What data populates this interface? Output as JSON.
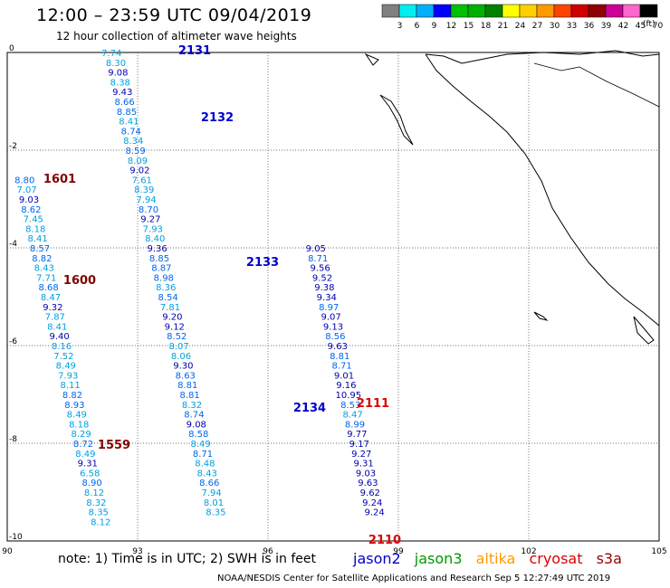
{
  "header": {
    "title": "12:00 – 23:59 UTC 09/04/2019",
    "subtitle": "12 hour collection of altimeter wave heights",
    "unit": "(ft)"
  },
  "color_scale": {
    "labels": [
      "3",
      "6",
      "9",
      "12",
      "15",
      "18",
      "21",
      "24",
      "27",
      "30",
      "33",
      "36",
      "39",
      "42",
      "45",
      "70"
    ],
    "colors": [
      "#808080",
      "#00eeee",
      "#00b0ff",
      "#0000ff",
      "#00c000",
      "#00b000",
      "#008000",
      "#ffff00",
      "#ffd000",
      "#ff9900",
      "#ff4400",
      "#d00000",
      "#900000",
      "#cc0099",
      "#ff66cc",
      "#000000"
    ]
  },
  "chart_data": {
    "type": "scatter",
    "xlim": [
      90,
      105
    ],
    "ylim": [
      -10,
      0
    ],
    "x_ticks": [
      "90",
      "93",
      "96",
      "99",
      "102",
      "105"
    ],
    "y_ticks": [
      "0",
      "-2",
      "-4",
      "-6",
      "-8",
      "-10"
    ],
    "grid": true,
    "tracks": [
      {
        "pass": "2131",
        "satellite": "jason2",
        "x": [
          92.4,
          92.5,
          92.55,
          92.6,
          92.65,
          92.7,
          92.75,
          92.8,
          92.85,
          92.9,
          92.95,
          93.0,
          93.05,
          93.1,
          93.15,
          93.2,
          93.25,
          93.3,
          93.35,
          93.4,
          93.45,
          93.5,
          93.55,
          93.6,
          93.65,
          93.7,
          93.75,
          93.8,
          93.85,
          93.9,
          93.95,
          94.0,
          94.05,
          94.1,
          94.15,
          94.2,
          94.25,
          94.3,
          94.35,
          94.4,
          94.45,
          94.5,
          94.55,
          94.6,
          94.65,
          94.7,
          94.75,
          94.8
        ],
        "y": [
          0,
          -0.2,
          -0.4,
          -0.6,
          -0.8,
          -1.0,
          -1.2,
          -1.4,
          -1.6,
          -1.8,
          -2.0,
          -2.2,
          -2.4,
          -2.6,
          -2.8,
          -3.0,
          -3.2,
          -3.4,
          -3.6,
          -3.8,
          -4.0,
          -4.2,
          -4.4,
          -4.6,
          -4.8,
          -5.0,
          -5.2,
          -5.4,
          -5.6,
          -5.8,
          -6.0,
          -6.2,
          -6.4,
          -6.6,
          -6.8,
          -7.0,
          -7.2,
          -7.4,
          -7.6,
          -7.8,
          -8.0,
          -8.2,
          -8.4,
          -8.6,
          -8.8,
          -9.0,
          -9.2,
          -9.4
        ],
        "values": [
          7.74,
          8.3,
          9.08,
          8.38,
          9.43,
          8.66,
          8.85,
          8.41,
          8.74,
          8.34,
          8.59,
          8.09,
          9.02,
          7.61,
          8.39,
          7.94,
          8.7,
          9.27,
          7.93,
          8.4,
          9.36,
          8.85,
          8.87,
          8.98,
          8.36,
          8.54,
          7.81,
          9.2,
          9.12,
          8.52,
          8.07,
          8.06,
          9.3,
          8.63,
          8.81,
          8.81,
          8.32,
          8.74,
          9.08,
          8.58,
          8.49,
          8.71,
          8.48,
          8.43,
          8.66,
          7.94,
          8.01,
          8.35
        ]
      },
      {
        "pass": "1601",
        "satellite": "cryosat",
        "x": [
          90.4,
          90.45,
          90.5,
          90.55,
          90.6,
          90.65,
          90.7
        ],
        "y": [
          -2.6,
          -2.8,
          -3.0,
          -3.2,
          -3.4,
          -3.6,
          -3.8
        ],
        "values": [
          8.8,
          7.07,
          9.03,
          8.62,
          7.45,
          8.18,
          8.41
        ]
      },
      {
        "pass": "1600",
        "satellite": "cryosat",
        "x": [
          90.75,
          90.8,
          90.85,
          90.9,
          90.95,
          91.0,
          91.05,
          91.1,
          91.15,
          91.2,
          91.25,
          91.3,
          91.35,
          91.4,
          91.45,
          91.5,
          91.55,
          91.6,
          91.65,
          91.7,
          91.75,
          91.8,
          91.85,
          91.9,
          91.95,
          92.0,
          92.05,
          92.1,
          92.15
        ],
        "y": [
          -4.0,
          -4.2,
          -4.4,
          -4.6,
          -4.8,
          -5.0,
          -5.2,
          -5.4,
          -5.6,
          -5.8,
          -6.0,
          -6.2,
          -6.4,
          -6.6,
          -6.8,
          -7.0,
          -7.2,
          -7.4,
          -7.6,
          -7.8,
          -8.0,
          -8.2,
          -8.4,
          -8.6,
          -8.8,
          -9.0,
          -9.2,
          -9.4,
          -9.6
        ],
        "values": [
          8.57,
          8.82,
          8.43,
          7.71,
          8.68,
          8.47,
          9.32,
          7.87,
          8.41,
          9.4,
          8.16,
          7.52,
          8.49,
          7.93,
          8.11,
          8.82,
          8.93,
          8.49,
          8.18,
          8.29,
          8.72,
          8.49,
          9.31,
          6.58,
          8.9,
          8.12,
          8.32,
          8.35,
          8.12
        ]
      },
      {
        "pass": "2134",
        "satellite": "jason2",
        "x": [
          97.1,
          97.15,
          97.2,
          97.25,
          97.3,
          97.35,
          97.4,
          97.45,
          97.5,
          97.55,
          97.6,
          97.65,
          97.7,
          97.75,
          97.8,
          97.85,
          97.9,
          97.95,
          98.0,
          98.05,
          98.1,
          98.15,
          98.2,
          98.25,
          98.3,
          98.35,
          98.4,
          98.45
        ],
        "y": [
          -4.0,
          -4.2,
          -4.4,
          -4.6,
          -4.8,
          -5.0,
          -5.2,
          -5.4,
          -5.6,
          -5.8,
          -6.0,
          -6.2,
          -6.4,
          -6.6,
          -6.8,
          -7.0,
          -7.2,
          -7.4,
          -7.6,
          -7.8,
          -8.0,
          -8.2,
          -8.4,
          -8.6,
          -8.8,
          -9.0,
          -9.2,
          -9.4
        ],
        "values": [
          9.05,
          8.71,
          9.56,
          9.52,
          9.38,
          9.34,
          8.97,
          9.07,
          9.13,
          8.56,
          9.63,
          8.81,
          8.71,
          9.01,
          9.16,
          10.95,
          8.53,
          8.47,
          8.99,
          9.77,
          9.17,
          9.27,
          9.31,
          9.03,
          9.63,
          9.62,
          9.24,
          9.24
        ]
      }
    ],
    "pass_labels": [
      {
        "text": "2131",
        "color": "#0000cc"
      },
      {
        "text": "2132",
        "color": "#0000cc"
      },
      {
        "text": "2133",
        "color": "#0000cc"
      },
      {
        "text": "2134",
        "color": "#0000cc"
      },
      {
        "text": "1601",
        "color": "#800000"
      },
      {
        "text": "1600",
        "color": "#800000"
      },
      {
        "text": "1559",
        "color": "#800000"
      },
      {
        "text": "2111",
        "color": "#dd0000"
      },
      {
        "text": "2110",
        "color": "#dd0000"
      }
    ]
  },
  "footer": {
    "note": "note:  1) Time is in UTC;  2) SWH is in feet",
    "legend": [
      {
        "name": "jason2",
        "color": "#0000cc"
      },
      {
        "name": "jason3",
        "color": "#009900"
      },
      {
        "name": "altika",
        "color": "#ff9900"
      },
      {
        "name": "cryosat",
        "color": "#dd0000"
      },
      {
        "name": "s3a",
        "color": "#990000"
      }
    ],
    "credit": "NOAA/NESDIS Center for Satellite Applications and Research    Sep  5 12:27:49 UTC 2019"
  }
}
